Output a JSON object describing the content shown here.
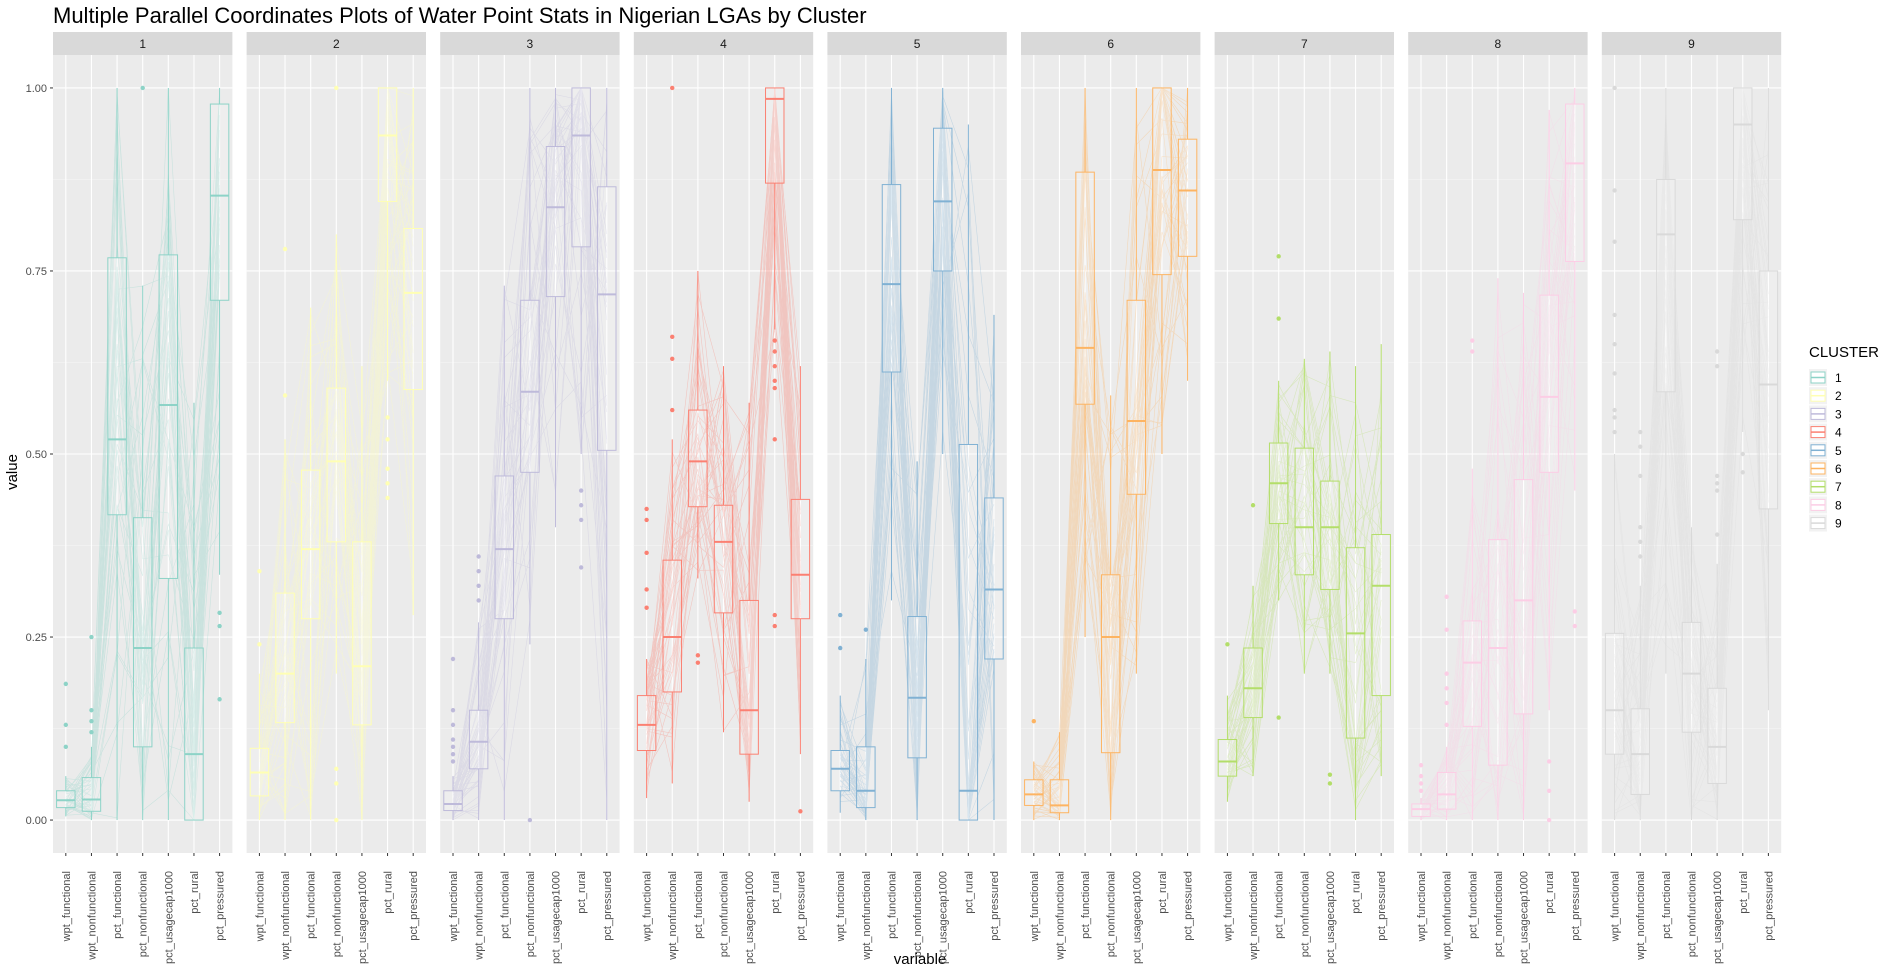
{
  "chart_data": {
    "type": "boxplot",
    "title": "Multiple Parallel Coordinates Plots of Water Point Stats in Nigerian LGAs by Cluster",
    "xlabel": "variable",
    "ylabel": "value",
    "ylim": [
      -0.045,
      1.045
    ],
    "y_ticks": [
      "0.00",
      "0.25",
      "0.50",
      "0.75",
      "1.00"
    ],
    "y_tick_values": [
      0,
      0.25,
      0.5,
      0.75,
      1.0
    ],
    "categories": [
      "wpt_functional",
      "wpt_nonfunctional",
      "pct_functional",
      "pct_nonfunctional",
      "pct_usagecap1000",
      "pct_rural",
      "pct_pressured"
    ],
    "legend": {
      "title": "CLUSTER",
      "position": "right",
      "entries": [
        "1",
        "2",
        "3",
        "4",
        "5",
        "6",
        "7",
        "8",
        "9"
      ]
    },
    "colors": [
      "#8DD3C7",
      "#FFFFB3",
      "#BEBADA",
      "#FB8072",
      "#80B1D3",
      "#FDB462",
      "#B3DE69",
      "#FCCDE5",
      "#D9D9D9"
    ],
    "grid": true,
    "panels": [
      {
        "cluster": "1",
        "boxes": [
          {
            "q1": 0.017,
            "median": 0.027,
            "q3": 0.04,
            "min": 0.005,
            "max": 0.06,
            "outliers": [
              0.1,
              0.13,
              0.186
            ]
          },
          {
            "q1": 0.012,
            "median": 0.028,
            "q3": 0.058,
            "min": 0.0,
            "max": 0.1,
            "outliers": [
              0.12,
              0.135,
              0.15,
              0.25
            ]
          },
          {
            "q1": 0.417,
            "median": 0.52,
            "q3": 0.768,
            "min": 0.0,
            "max": 1.0,
            "outliers": []
          },
          {
            "q1": 0.1,
            "median": 0.235,
            "q3": 0.413,
            "min": 0.0,
            "max": 0.73,
            "outliers": [
              1.0
            ]
          },
          {
            "q1": 0.33,
            "median": 0.567,
            "q3": 0.772,
            "min": 0.0,
            "max": 1.0,
            "outliers": []
          },
          {
            "q1": 0.0,
            "median": 0.09,
            "q3": 0.235,
            "min": 0.0,
            "max": 0.57,
            "outliers": []
          },
          {
            "q1": 0.71,
            "median": 0.853,
            "q3": 0.978,
            "min": 0.335,
            "max": 1.0,
            "outliers": [
              0.165,
              0.265,
              0.283
            ]
          }
        ]
      },
      {
        "cluster": "2",
        "boxes": [
          {
            "q1": 0.033,
            "median": 0.065,
            "q3": 0.098,
            "min": 0.0,
            "max": 0.2,
            "outliers": [
              0.24,
              0.34
            ]
          },
          {
            "q1": 0.133,
            "median": 0.2,
            "q3": 0.31,
            "min": 0.0,
            "max": 0.52,
            "outliers": [
              0.58,
              0.78
            ]
          },
          {
            "q1": 0.275,
            "median": 0.37,
            "q3": 0.478,
            "min": 0.0,
            "max": 0.7,
            "outliers": []
          },
          {
            "q1": 0.38,
            "median": 0.49,
            "q3": 0.59,
            "min": 0.2,
            "max": 0.8,
            "outliers": [
              0.0,
              0.05,
              0.07,
              1.0
            ]
          },
          {
            "q1": 0.13,
            "median": 0.21,
            "q3": 0.38,
            "min": 0.0,
            "max": 0.62,
            "outliers": []
          },
          {
            "q1": 0.845,
            "median": 0.935,
            "q3": 1.0,
            "min": 0.6,
            "max": 1.0,
            "outliers": [
              0.44,
              0.46,
              0.48,
              0.52,
              0.55
            ]
          },
          {
            "q1": 0.588,
            "median": 0.72,
            "q3": 0.808,
            "min": 0.28,
            "max": 1.0,
            "outliers": []
          }
        ]
      },
      {
        "cluster": "3",
        "boxes": [
          {
            "q1": 0.013,
            "median": 0.022,
            "q3": 0.04,
            "min": 0.0,
            "max": 0.06,
            "outliers": [
              0.08,
              0.09,
              0.1,
              0.11,
              0.13,
              0.15,
              0.22
            ]
          },
          {
            "q1": 0.07,
            "median": 0.107,
            "q3": 0.15,
            "min": 0.0,
            "max": 0.27,
            "outliers": [
              0.3,
              0.32,
              0.34,
              0.36
            ]
          },
          {
            "q1": 0.275,
            "median": 0.37,
            "q3": 0.47,
            "min": 0.0,
            "max": 0.73,
            "outliers": []
          },
          {
            "q1": 0.475,
            "median": 0.585,
            "q3": 0.71,
            "min": 0.24,
            "max": 1.0,
            "outliers": [
              0.0
            ]
          },
          {
            "q1": 0.715,
            "median": 0.837,
            "q3": 0.92,
            "min": 0.4,
            "max": 1.0,
            "outliers": []
          },
          {
            "q1": 0.783,
            "median": 0.935,
            "q3": 1.0,
            "min": 0.5,
            "max": 1.0,
            "outliers": [
              0.345,
              0.41,
              0.43,
              0.45
            ]
          },
          {
            "q1": 0.505,
            "median": 0.718,
            "q3": 0.865,
            "min": 0.0,
            "max": 1.0,
            "outliers": []
          }
        ]
      },
      {
        "cluster": "4",
        "boxes": [
          {
            "q1": 0.095,
            "median": 0.13,
            "q3": 0.17,
            "min": 0.03,
            "max": 0.22,
            "outliers": [
              0.29,
              0.315,
              0.365,
              0.41,
              0.425
            ]
          },
          {
            "q1": 0.175,
            "median": 0.25,
            "q3": 0.355,
            "min": 0.05,
            "max": 0.52,
            "outliers": [
              0.56,
              0.63,
              0.66,
              1.0
            ]
          },
          {
            "q1": 0.428,
            "median": 0.49,
            "q3": 0.56,
            "min": 0.33,
            "max": 0.75,
            "outliers": [
              0.215,
              0.225
            ]
          },
          {
            "q1": 0.283,
            "median": 0.38,
            "q3": 0.43,
            "min": 0.12,
            "max": 0.62,
            "outliers": []
          },
          {
            "q1": 0.09,
            "median": 0.15,
            "q3": 0.3,
            "min": 0.025,
            "max": 0.57,
            "outliers": []
          },
          {
            "q1": 0.87,
            "median": 0.985,
            "q3": 1.0,
            "min": 0.67,
            "max": 1.0,
            "outliers": [
              0.265,
              0.28,
              0.52,
              0.59,
              0.6,
              0.62,
              0.64,
              0.655
            ]
          },
          {
            "q1": 0.275,
            "median": 0.335,
            "q3": 0.438,
            "min": 0.09,
            "max": 0.62,
            "outliers": [
              0.012
            ]
          }
        ]
      },
      {
        "cluster": "5",
        "boxes": [
          {
            "q1": 0.04,
            "median": 0.07,
            "q3": 0.095,
            "min": 0.01,
            "max": 0.17,
            "outliers": [
              0.235,
              0.28
            ]
          },
          {
            "q1": 0.017,
            "median": 0.04,
            "q3": 0.1,
            "min": 0.0,
            "max": 0.22,
            "outliers": [
              0.26
            ]
          },
          {
            "q1": 0.612,
            "median": 0.732,
            "q3": 0.868,
            "min": 0.3,
            "max": 1.0,
            "outliers": []
          },
          {
            "q1": 0.085,
            "median": 0.167,
            "q3": 0.278,
            "min": 0.0,
            "max": 0.49,
            "outliers": []
          },
          {
            "q1": 0.75,
            "median": 0.845,
            "q3": 0.945,
            "min": 0.5,
            "max": 1.0,
            "outliers": []
          },
          {
            "q1": 0.0,
            "median": 0.04,
            "q3": 0.513,
            "min": 0.0,
            "max": 0.95,
            "outliers": []
          },
          {
            "q1": 0.22,
            "median": 0.315,
            "q3": 0.44,
            "min": 0.0,
            "max": 0.69,
            "outliers": []
          }
        ]
      },
      {
        "cluster": "6",
        "boxes": [
          {
            "q1": 0.02,
            "median": 0.035,
            "q3": 0.055,
            "min": 0.0,
            "max": 0.08,
            "outliers": [
              0.135
            ]
          },
          {
            "q1": 0.01,
            "median": 0.02,
            "q3": 0.055,
            "min": 0.0,
            "max": 0.12,
            "outliers": []
          },
          {
            "q1": 0.568,
            "median": 0.645,
            "q3": 0.885,
            "min": 0.25,
            "max": 1.0,
            "outliers": []
          },
          {
            "q1": 0.092,
            "median": 0.25,
            "q3": 0.335,
            "min": 0.0,
            "max": 0.58,
            "outliers": []
          },
          {
            "q1": 0.445,
            "median": 0.545,
            "q3": 0.71,
            "min": 0.2,
            "max": 1.0,
            "outliers": []
          },
          {
            "q1": 0.745,
            "median": 0.888,
            "q3": 1.0,
            "min": 0.5,
            "max": 1.0,
            "outliers": []
          },
          {
            "q1": 0.77,
            "median": 0.86,
            "q3": 0.93,
            "min": 0.6,
            "max": 1.0,
            "outliers": []
          }
        ]
      },
      {
        "cluster": "7",
        "boxes": [
          {
            "q1": 0.06,
            "median": 0.08,
            "q3": 0.11,
            "min": 0.025,
            "max": 0.17,
            "outliers": [
              0.24
            ]
          },
          {
            "q1": 0.14,
            "median": 0.18,
            "q3": 0.235,
            "min": 0.06,
            "max": 0.32,
            "outliers": [
              0.43
            ]
          },
          {
            "q1": 0.405,
            "median": 0.46,
            "q3": 0.515,
            "min": 0.3,
            "max": 0.6,
            "outliers": [
              0.14,
              0.685,
              0.77
            ]
          },
          {
            "q1": 0.335,
            "median": 0.4,
            "q3": 0.508,
            "min": 0.2,
            "max": 0.63,
            "outliers": []
          },
          {
            "q1": 0.315,
            "median": 0.4,
            "q3": 0.463,
            "min": 0.2,
            "max": 0.64,
            "outliers": [
              0.05,
              0.062
            ]
          },
          {
            "q1": 0.112,
            "median": 0.255,
            "q3": 0.372,
            "min": 0.0,
            "max": 0.62,
            "outliers": []
          },
          {
            "q1": 0.17,
            "median": 0.32,
            "q3": 0.39,
            "min": 0.06,
            "max": 0.65,
            "outliers": []
          }
        ]
      },
      {
        "cluster": "8",
        "boxes": [
          {
            "q1": 0.005,
            "median": 0.015,
            "q3": 0.022,
            "min": 0.0,
            "max": 0.03,
            "outliers": [
              0.04,
              0.05,
              0.06,
              0.075
            ]
          },
          {
            "q1": 0.015,
            "median": 0.035,
            "q3": 0.065,
            "min": 0.0,
            "max": 0.1,
            "outliers": [
              0.13,
              0.16,
              0.18,
              0.2,
              0.26,
              0.305
            ]
          },
          {
            "q1": 0.128,
            "median": 0.215,
            "q3": 0.272,
            "min": 0.0,
            "max": 0.48,
            "outliers": [
              0.64,
              0.655
            ]
          },
          {
            "q1": 0.075,
            "median": 0.235,
            "q3": 0.383,
            "min": 0.0,
            "max": 0.74,
            "outliers": []
          },
          {
            "q1": 0.145,
            "median": 0.3,
            "q3": 0.465,
            "min": 0.0,
            "max": 0.72,
            "outliers": []
          },
          {
            "q1": 0.475,
            "median": 0.578,
            "q3": 0.717,
            "min": 0.15,
            "max": 0.97,
            "outliers": [
              0.0,
              0.04,
              0.08
            ]
          },
          {
            "q1": 0.763,
            "median": 0.897,
            "q3": 0.978,
            "min": 0.45,
            "max": 1.0,
            "outliers": [
              0.265,
              0.285
            ]
          }
        ]
      },
      {
        "cluster": "9",
        "boxes": [
          {
            "q1": 0.09,
            "median": 0.15,
            "q3": 0.255,
            "min": 0.0,
            "max": 0.5,
            "outliers": [
              0.53,
              0.55,
              0.56,
              0.61,
              0.65,
              0.69,
              0.79,
              0.86,
              1.0
            ]
          },
          {
            "q1": 0.035,
            "median": 0.09,
            "q3": 0.152,
            "min": 0.0,
            "max": 0.32,
            "outliers": [
              0.36,
              0.38,
              0.4,
              0.47,
              0.51,
              0.53
            ]
          },
          {
            "q1": 0.585,
            "median": 0.8,
            "q3": 0.875,
            "min": 0.2,
            "max": 1.0,
            "outliers": []
          },
          {
            "q1": 0.12,
            "median": 0.2,
            "q3": 0.27,
            "min": 0.0,
            "max": 0.4,
            "outliers": []
          },
          {
            "q1": 0.05,
            "median": 0.1,
            "q3": 0.18,
            "min": 0.0,
            "max": 0.35,
            "outliers": [
              0.39,
              0.45,
              0.46,
              0.47,
              0.62,
              0.64
            ]
          },
          {
            "q1": 0.82,
            "median": 0.95,
            "q3": 1.0,
            "min": 0.53,
            "max": 1.0,
            "outliers": [
              0.475,
              0.5
            ]
          },
          {
            "q1": 0.425,
            "median": 0.595,
            "q3": 0.75,
            "min": 0.15,
            "max": 1.0,
            "outliers": []
          }
        ]
      }
    ]
  }
}
